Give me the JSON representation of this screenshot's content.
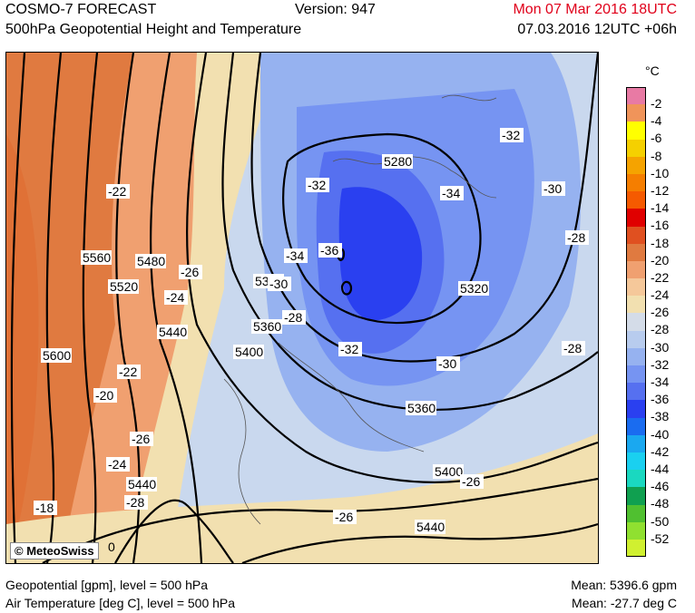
{
  "header": {
    "title": "COSMO-7 FORECAST",
    "subtitle": "500hPa Geopotential Height and Temperature",
    "version": "Version: 947",
    "valid_time": "Mon 07 Mar 2016 18UTC",
    "run_time": "07.03.2016 12UTC +06h"
  },
  "map": {
    "copyright": "© MeteoSwiss",
    "height_labels": [
      "5600",
      "5560",
      "5520",
      "5480",
      "5440",
      "5440",
      "5400",
      "5360",
      "5320",
      "5320",
      "5280",
      "5360",
      "5400",
      "5440"
    ],
    "temp_labels": [
      "-22",
      "-26",
      "-24",
      "-22",
      "-20",
      "-26",
      "-24",
      "-28",
      "-18",
      "-32",
      "-34",
      "-36",
      "-34",
      "-30",
      "-28",
      "-32",
      "-30",
      "-32",
      "-30",
      "-28",
      "-28",
      "-26",
      "-26",
      "0"
    ]
  },
  "legend": {
    "unit": "°C",
    "levels": [
      "-2",
      "-4",
      "-6",
      "-8",
      "-10",
      "-12",
      "-14",
      "-16",
      "-18",
      "-20",
      "-22",
      "-24",
      "-26",
      "-28",
      "-30",
      "-32",
      "-34",
      "-36",
      "-38",
      "-40",
      "-42",
      "-44",
      "-46",
      "-48",
      "-50",
      "-52"
    ],
    "colors": [
      "#e87aa4",
      "#f0945a",
      "#ffff00",
      "#f5d000",
      "#f5a300",
      "#f57e00",
      "#f55a00",
      "#e00000",
      "#e05020",
      "#e07a40",
      "#f0a070",
      "#f5c89a",
      "#f2e0b0",
      "#d4dce8",
      "#b8ccee",
      "#96b2f0",
      "#7694f2",
      "#5670f0",
      "#2a40f0",
      "#1a6cf0",
      "#1aa8f0",
      "#1ad0f0",
      "#1ad8c0",
      "#10a050",
      "#50c030",
      "#90e030",
      "#d0f030"
    ]
  },
  "footer": {
    "left_line1": "Geopotential [gpm], level = 500 hPa",
    "left_line2": "Air Temperature [deg C], level = 500 hPa",
    "right_line1": "Mean: 5396.6 gpm",
    "right_line2": "Mean:  -27.7 deg C"
  }
}
